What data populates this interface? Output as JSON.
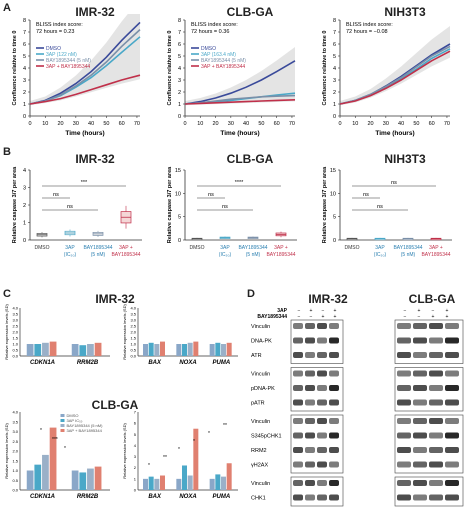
{
  "panels": {
    "a": {
      "label": "A",
      "xlabel": "Time (hours)",
      "ylabel": "Confluence relative to time 0",
      "xticks": [
        "0",
        "10",
        "20",
        "30",
        "40",
        "50",
        "60",
        "70"
      ],
      "yticks": [
        "0",
        "1",
        "2",
        "3",
        "4",
        "5",
        "6",
        "7",
        "8"
      ],
      "legend": [
        "DMSO",
        "3AP (122 nM)",
        "BAY1895344 (5 nM)",
        "3AP + BAY1895344"
      ],
      "legend_clb": [
        "DMSO",
        "3AP (163.4 nM)",
        "BAY1895344 (5 nM)",
        "3AP + BAY1895344"
      ],
      "colors": {
        "dmso": "#3a4a9a",
        "threeap": "#4aa8c8",
        "bay": "#7a8fa8",
        "combo": "#c0304a"
      }
    },
    "b": {
      "label": "B",
      "ylabel": "Relative caspase 3/7 per area",
      "yticks_imr": [
        "0",
        "1",
        "2",
        "3",
        "4"
      ],
      "yticks_small": [
        "0",
        "5",
        "10",
        "15"
      ],
      "xcat": [
        "DMSO",
        "3AP",
        "(IC₅₀)",
        "BAY1895344",
        "(5 nM)",
        "3AP +",
        "BAY1895344"
      ],
      "sig": {
        "imr": [
          "***",
          "ns",
          "ns"
        ],
        "clb": [
          "****",
          "ns",
          "ns"
        ],
        "nih": [
          "ns",
          "ns",
          "ns"
        ]
      }
    },
    "c": {
      "label": "C",
      "title_imr": "IMR-32",
      "title_clb": "CLB-GA",
      "ylabel": "Relative expression levels (SD)",
      "genes_left": [
        "CDKN1A",
        "RRM2B"
      ],
      "genes_right": [
        "BAX",
        "NOXA",
        "PUMA"
      ],
      "legend": [
        "DMSO",
        "3AP IC₅₀",
        "BAY1895344 (5 nM)",
        "3AP + BAY1895344"
      ],
      "yticks": [
        "0.0",
        "0.5",
        "1.0",
        "1.5",
        "2.0",
        "2.5",
        "3.0",
        "3.5",
        "4.0"
      ],
      "yticks_bax": [
        "0",
        "1",
        "2",
        "3",
        "4",
        "5",
        "6",
        "7"
      ],
      "sig": [
        "*",
        "***",
        "*",
        "*",
        "**",
        "*",
        "*",
        "*",
        "**"
      ]
    },
    "d": {
      "label": "D",
      "title_imr": "IMR-32",
      "title_clb": "CLB-GA",
      "treat_rows": [
        "3AP",
        "BAY1895344"
      ],
      "treat_signs": [
        [
          "−",
          "+",
          "−",
          "+"
        ],
        [
          "−",
          "−",
          "+",
          "+"
        ]
      ],
      "blot_rows": [
        "Vinculin",
        "DNA-PK",
        "ATR",
        "Vinculin",
        "pDNA-PK",
        "pATR",
        "Vinculin",
        "S345pCHK1",
        "RRM2",
        "γH2AX",
        "Vinculin",
        "CHK1"
      ]
    }
  },
  "chart_data": [
    {
      "type": "line",
      "title": "IMR-32",
      "annotation": [
        "BLISS index score:",
        "72 hours = 0.23"
      ],
      "xlabel": "Time (hours)",
      "ylabel": "Confluence relative to time 0",
      "xlim": [
        0,
        72
      ],
      "ylim": [
        0,
        8
      ],
      "x": [
        0,
        10,
        20,
        30,
        40,
        50,
        60,
        72
      ],
      "series": [
        {
          "name": "DMSO",
          "values": [
            1,
            1.3,
            1.9,
            2.7,
            3.7,
            4.9,
            6.3,
            7.8
          ]
        },
        {
          "name": "3AP (122 nM)",
          "values": [
            1,
            1.25,
            1.7,
            2.4,
            3.2,
            4.2,
            5.3,
            6.6
          ]
        },
        {
          "name": "BAY1895344 (5 nM)",
          "values": [
            1,
            1.25,
            1.75,
            2.5,
            3.4,
            4.5,
            5.8,
            7.2
          ]
        },
        {
          "name": "3AP + BAY1895344",
          "values": [
            1,
            1.2,
            1.45,
            1.8,
            2.2,
            2.6,
            3.0,
            3.4
          ]
        }
      ]
    },
    {
      "type": "line",
      "title": "CLB-GA",
      "annotation": [
        "BLISS index score:",
        "72 hours = 0.36"
      ],
      "xlabel": "Time (hours)",
      "ylabel": "Confluence relative to time 0",
      "xlim": [
        0,
        72
      ],
      "ylim": [
        0,
        8
      ],
      "x": [
        0,
        10,
        20,
        30,
        40,
        50,
        60,
        72
      ],
      "series": [
        {
          "name": "DMSO",
          "values": [
            1,
            1.2,
            1.5,
            1.9,
            2.4,
            3.0,
            3.7,
            4.6
          ]
        },
        {
          "name": "3AP (163.4 nM)",
          "values": [
            1,
            1.1,
            1.2,
            1.3,
            1.45,
            1.6,
            1.75,
            1.9
          ]
        },
        {
          "name": "BAY1895344 (5 nM)",
          "values": [
            1,
            1.1,
            1.25,
            1.4,
            1.5,
            1.6,
            1.65,
            1.7
          ]
        },
        {
          "name": "3AP + BAY1895344",
          "values": [
            1,
            1.05,
            1.1,
            1.15,
            1.2,
            1.25,
            1.3,
            1.35
          ]
        }
      ]
    },
    {
      "type": "line",
      "title": "NIH3T3",
      "annotation": [
        "BLISS index score:",
        "72 hours = −0.08"
      ],
      "xlabel": "Time (hours)",
      "ylabel": "Confluence relative to time 0",
      "xlim": [
        0,
        72
      ],
      "ylim": [
        0,
        8
      ],
      "x": [
        0,
        10,
        20,
        30,
        40,
        50,
        60,
        72
      ],
      "series": [
        {
          "name": "DMSO",
          "values": [
            1,
            1.3,
            1.8,
            2.5,
            3.3,
            4.2,
            5.1,
            6.0
          ]
        },
        {
          "name": "3AP",
          "values": [
            1,
            1.3,
            1.75,
            2.4,
            3.1,
            3.9,
            4.8,
            5.6
          ]
        },
        {
          "name": "BAY1895344",
          "values": [
            1,
            1.3,
            1.8,
            2.45,
            3.2,
            4.1,
            5.0,
            5.8
          ]
        },
        {
          "name": "3AP + BAY1895344",
          "values": [
            1,
            1.25,
            1.7,
            2.3,
            3.0,
            3.8,
            4.6,
            5.4
          ]
        }
      ]
    },
    {
      "type": "bar",
      "title": "IMR-32",
      "ylabel": "Relative caspase 3/7 per area",
      "ylim": [
        0,
        4
      ],
      "categories": [
        "DMSO",
        "3AP (IC50)",
        "BAY1895344 (5 nM)",
        "3AP + BAY1895344"
      ],
      "values": [
        0.3,
        0.4,
        0.35,
        1.3
      ]
    },
    {
      "type": "bar",
      "title": "CLB-GA",
      "ylabel": "Relative caspase 3/7 per area",
      "ylim": [
        0,
        15
      ],
      "categories": [
        "DMSO",
        "3AP (IC50)",
        "BAY1895344 (5 nM)",
        "3AP + BAY1895344"
      ],
      "values": [
        0.3,
        0.5,
        0.5,
        1.2
      ]
    },
    {
      "type": "bar",
      "title": "NIH3T3",
      "ylabel": "Relative caspase 3/7 per area",
      "ylim": [
        0,
        15
      ],
      "categories": [
        "DMSO",
        "3AP (IC50)",
        "BAY1895344 (5 nM)",
        "3AP + BAY1895344"
      ],
      "values": [
        0.3,
        0.3,
        0.3,
        0.3
      ]
    }
  ]
}
